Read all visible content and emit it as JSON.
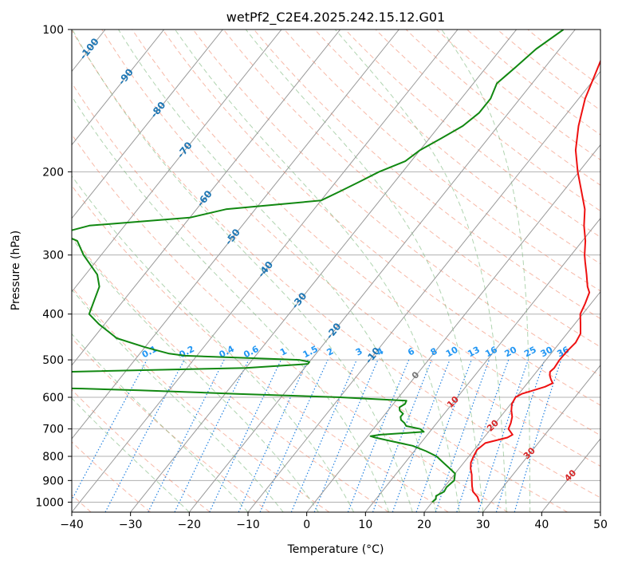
{
  "chart_data": {
    "type": "line",
    "title": "wetPf2_C2E4.2025.242.15.12.G01",
    "xlabel": "Temperature (°C)",
    "ylabel": "Pressure (hPa)",
    "xlim": [
      -40,
      50
    ],
    "ylim": [
      1050,
      100
    ],
    "y_scale": "log",
    "grid": true,
    "x_ticks": [
      -40,
      -30,
      -20,
      -10,
      0,
      10,
      20,
      30,
      40,
      50
    ],
    "y_ticks": [
      100,
      200,
      300,
      400,
      500,
      600,
      700,
      800,
      900,
      1000
    ],
    "colors": {
      "temperature": "#ee1111",
      "dewpoint": "#118811",
      "isotherm": "#999999",
      "dry_adiabat": "#f08060",
      "moist_adiabat": "#70b070",
      "mixing_ratio": "#2080e0",
      "isotherm_label": "#1f77b4",
      "mixing_ratio_label": "#2196f3",
      "adiabat_label": "#d62728"
    },
    "series": [
      {
        "key": "temperature",
        "p": [
          1000,
          975,
          950,
          925,
          900,
          875,
          850,
          825,
          800,
          775,
          750,
          730,
          720,
          700,
          680,
          660,
          640,
          620,
          600,
          590,
          580,
          570,
          560,
          550,
          540,
          530,
          520,
          500,
          480,
          460,
          440,
          420,
          400,
          380,
          360,
          350,
          330,
          310,
          300,
          280,
          260,
          240,
          220,
          200,
          180,
          160,
          140,
          120,
          110,
          100
        ],
        "t": [
          28,
          27,
          25.5,
          24.6,
          23.8,
          23,
          22,
          21.2,
          20.8,
          20.5,
          21,
          24,
          24.5,
          23,
          22.6,
          22,
          21,
          20.2,
          19.9,
          20.5,
          22,
          23.5,
          24.3,
          23.5,
          22.8,
          22.3,
          22.5,
          22.3,
          22.4,
          22.7,
          22.3,
          21,
          19.6,
          19,
          18.2,
          17.1,
          15.3,
          13.3,
          12.3,
          10.5,
          8.2,
          6.1,
          3.1,
          -0.2,
          -3.5,
          -6.3,
          -8.9,
          -11,
          -12.2,
          -13.4
        ]
      },
      {
        "key": "dewpoint",
        "p": [
          1000,
          985,
          970,
          950,
          930,
          900,
          870,
          850,
          825,
          800,
          780,
          760,
          740,
          730,
          725,
          720,
          710,
          700,
          690,
          680,
          670,
          660,
          650,
          640,
          630,
          620,
          610,
          600,
          590,
          580,
          575,
          570,
          560,
          550,
          540,
          535,
          530,
          520,
          515,
          510,
          505,
          500,
          495,
          490,
          485,
          470,
          450,
          420,
          400,
          350,
          330,
          300,
          280,
          270,
          260,
          250,
          240,
          230,
          220,
          210,
          200,
          190,
          180,
          170,
          160,
          150,
          140,
          130,
          120,
          110,
          100
        ],
        "t": [
          20,
          20.2,
          19.8,
          20.6,
          20.4,
          20.8,
          20,
          18.5,
          16.5,
          14.5,
          12,
          9,
          4,
          1.5,
          0.5,
          2,
          9,
          8,
          5.2,
          4.5,
          3.5,
          3,
          3,
          2,
          1.5,
          2,
          1.8,
          -10,
          -28,
          -45,
          -55,
          -72,
          -82,
          -88,
          -88,
          -80,
          -60,
          -30,
          -25,
          -20,
          -20,
          -22,
          -32,
          -42,
          -45,
          -50,
          -56,
          -61,
          -64,
          -66,
          -68,
          -73,
          -76,
          -80,
          -76,
          -60,
          -55,
          -40,
          -38,
          -36,
          -34,
          -31,
          -30,
          -28,
          -26,
          -25,
          -25,
          -26,
          -25,
          -24,
          -22
        ]
      }
    ],
    "isotherm_labels": [
      "-100",
      "-90",
      "-80",
      "-70",
      "-60",
      "-50",
      "-40",
      "-30",
      "-20",
      "-10"
    ],
    "mixing_ratio_labels": [
      "0.1",
      "0.2",
      "0.4",
      "0.6",
      "1",
      "1.5",
      "2",
      "3",
      "4",
      "6",
      "8",
      "10",
      "13",
      "16",
      "20",
      "25",
      "30",
      "36"
    ],
    "moist_adiabat_labels": [
      "0",
      "10",
      "20",
      "30",
      "40"
    ]
  }
}
